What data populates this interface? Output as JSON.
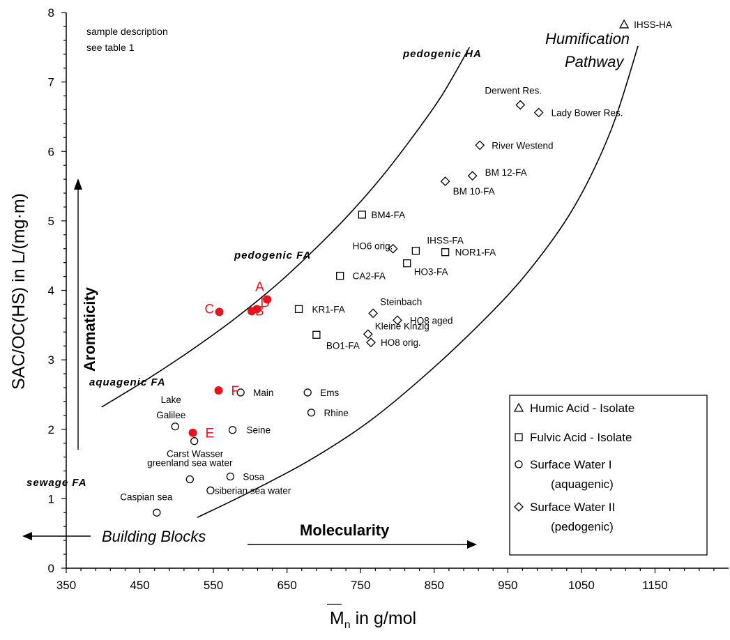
{
  "chart_data": {
    "type": "scatter",
    "xlabel_main": "M",
    "xlabel_sub": "n",
    "xlabel_rest": " in g/mol",
    "ylabel": "SAC/OC(HS) in L/(mg·m)",
    "xlim": [
      350,
      1250
    ],
    "ylim": [
      0,
      8
    ],
    "x_ticks": [
      350,
      450,
      550,
      650,
      750,
      850,
      950,
      1050,
      1150
    ],
    "y_ticks": [
      0,
      1,
      2,
      3,
      4,
      5,
      6,
      7,
      8
    ],
    "grid": false,
    "legend_position": "bottom-right",
    "series": [
      {
        "name": "Humic Acid - Isolate",
        "marker": "triangle",
        "points": [
          {
            "label": "IHSS-HA",
            "x": 1108,
            "y": 7.83
          }
        ]
      },
      {
        "name": "Fulvic Acid - Isolate",
        "marker": "square",
        "points": [
          {
            "label": "BM4-FA",
            "x": 752,
            "y": 5.09
          },
          {
            "label": "IHSS-FA",
            "x": 825,
            "y": 4.57
          },
          {
            "label": "NOR1-FA",
            "x": 865,
            "y": 4.55
          },
          {
            "label": "HO3-FA",
            "x": 813,
            "y": 4.39
          },
          {
            "label": "CA2-FA",
            "x": 722,
            "y": 4.21
          },
          {
            "label": "KR1-FA",
            "x": 666,
            "y": 3.73
          },
          {
            "label": "BO1-FA",
            "x": 690,
            "y": 3.36
          }
        ]
      },
      {
        "name": "Surface Water I (aquagenic)",
        "marker": "circle",
        "points": [
          {
            "label": "Main",
            "x": 587,
            "y": 2.53
          },
          {
            "label": "Ems",
            "x": 678,
            "y": 2.53
          },
          {
            "label": "Rhine",
            "x": 683,
            "y": 2.24
          },
          {
            "label": "Seine",
            "x": 576,
            "y": 1.99
          },
          {
            "label": "Lake Galilee",
            "x": 498,
            "y": 2.04
          },
          {
            "label": "Carst Wasser",
            "x": 524,
            "y": 1.83
          },
          {
            "label": "greenland sea water",
            "x": 518,
            "y": 1.28
          },
          {
            "label": "Sosa",
            "x": 573,
            "y": 1.32
          },
          {
            "label": "siberian sea water",
            "x": 546,
            "y": 1.12
          },
          {
            "label": "Caspian sea",
            "x": 473,
            "y": 0.8
          }
        ]
      },
      {
        "name": "Surface Water II (pedogenic)",
        "marker": "diamond",
        "points": [
          {
            "label": "Derwent Res.",
            "x": 967,
            "y": 6.67
          },
          {
            "label": "Lady Bower Res.",
            "x": 992,
            "y": 6.56
          },
          {
            "label": "River Westend",
            "x": 912,
            "y": 6.09
          },
          {
            "label": "BM 12-FA",
            "x": 902,
            "y": 5.65
          },
          {
            "label": "BM 10-FA",
            "x": 865,
            "y": 5.57
          },
          {
            "label": "HO6 orig.",
            "x": 794,
            "y": 4.6
          },
          {
            "label": "Steinbach",
            "x": 767,
            "y": 3.67
          },
          {
            "label": "HO8 aged",
            "x": 800,
            "y": 3.57
          },
          {
            "label": "Kleine Kinzig",
            "x": 760,
            "y": 3.37
          },
          {
            "label": "HO8 orig.",
            "x": 764,
            "y": 3.25
          }
        ]
      },
      {
        "name": "",
        "marker": "filled-circle",
        "color": "#e8141c",
        "points": [
          {
            "label": "A",
            "x": 623,
            "y": 3.87
          },
          {
            "label": "B",
            "x": 602,
            "y": 3.7
          },
          {
            "label": "C",
            "x": 558,
            "y": 3.69
          },
          {
            "label": "D",
            "x": 609,
            "y": 3.73
          },
          {
            "label": "E",
            "x": 522,
            "y": 1.95
          },
          {
            "label": "F",
            "x": 557,
            "y": 2.56
          }
        ]
      }
    ],
    "curves": [
      {
        "points": [
          [
            398,
            2.32
          ],
          [
            460,
            2.72
          ],
          [
            520,
            3.14
          ],
          [
            580,
            3.6
          ],
          [
            640,
            4.12
          ],
          [
            700,
            4.72
          ],
          [
            740,
            5.16
          ],
          [
            780,
            5.65
          ],
          [
            820,
            6.2
          ],
          [
            860,
            6.8
          ],
          [
            898,
            7.5
          ]
        ]
      },
      {
        "points": [
          [
            528,
            0.73
          ],
          [
            600,
            1.1
          ],
          [
            680,
            1.55
          ],
          [
            760,
            2.1
          ],
          [
            840,
            2.8
          ],
          [
            920,
            3.6
          ],
          [
            980,
            4.3
          ],
          [
            1040,
            5.2
          ],
          [
            1090,
            6.3
          ],
          [
            1127,
            7.52
          ]
        ]
      }
    ],
    "annotations": {
      "sample_note_1": "sample description",
      "sample_note_2": "see table 1",
      "pedogenic_ha": "pedogenic HA",
      "pedogenic_fa": "pedogenic FA",
      "aquagenic_fa": "aquagenic FA",
      "sewage_fa": "sewage FA",
      "humification_1": "Humification",
      "humification_2": "Pathway",
      "aromaticity": "Aromaticity",
      "building_blocks": "Building Blocks",
      "molecularity": "Molecularity"
    },
    "legend": [
      {
        "marker": "triangle",
        "line1": "Humic Acid - Isolate",
        "line2": ""
      },
      {
        "marker": "square",
        "line1": "Fulvic Acid - Isolate",
        "line2": ""
      },
      {
        "marker": "circle",
        "line1": "Surface Water I",
        "line2": "(aquagenic)"
      },
      {
        "marker": "diamond",
        "line1": "Surface Water II",
        "line2": "(pedogenic)"
      }
    ]
  }
}
